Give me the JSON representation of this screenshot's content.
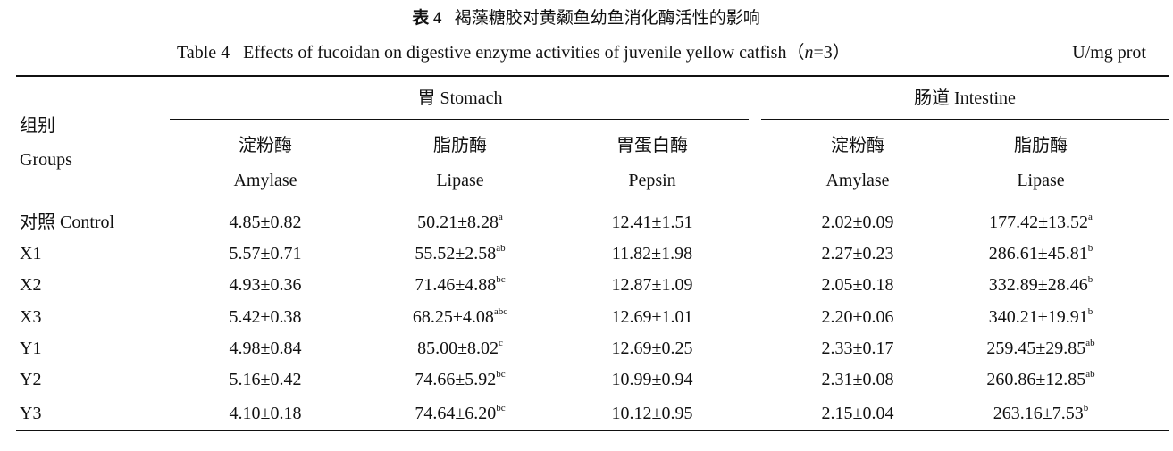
{
  "title": {
    "label": "表 4",
    "text": "褐藻糖胶对黄颡鱼幼鱼消化酶活性的影响"
  },
  "caption": {
    "label": "Table 4",
    "text": "Effects of fucoidan on digestive enzyme activities of juvenile yellow catfish",
    "sample_open": "（",
    "sample_var": "n",
    "sample_rest": "=3）",
    "unit": "U/mg prot"
  },
  "table": {
    "group_header": [
      "组别",
      "Groups"
    ],
    "sections": [
      {
        "name": "胃 Stomach",
        "columns": [
          [
            "淀粉酶",
            "Amylase"
          ],
          [
            "脂肪酶",
            "Lipase"
          ],
          [
            "胃蛋白酶",
            "Pepsin"
          ]
        ]
      },
      {
        "name": "肠道 Intestine",
        "columns": [
          [
            "淀粉酶",
            "Amylase"
          ],
          [
            "脂肪酶",
            "Lipase"
          ]
        ]
      }
    ],
    "rows": [
      {
        "group": "对照 Control",
        "cells": [
          {
            "text": "4.85±0.82"
          },
          {
            "text": "50.21±8.28",
            "sup": "a"
          },
          {
            "text": "12.41±1.51"
          },
          {
            "text": "2.02±0.09"
          },
          {
            "text": "177.42±13.52",
            "sup": "a"
          }
        ]
      },
      {
        "group": "X1",
        "cells": [
          {
            "text": "5.57±0.71"
          },
          {
            "text": "55.52±2.58",
            "sup": "ab"
          },
          {
            "text": "11.82±1.98"
          },
          {
            "text": "2.27±0.23"
          },
          {
            "text": "286.61±45.81",
            "sup": "b"
          }
        ]
      },
      {
        "group": "X2",
        "cells": [
          {
            "text": "4.93±0.36"
          },
          {
            "text": "71.46±4.88",
            "sup": "bc"
          },
          {
            "text": "12.87±1.09"
          },
          {
            "text": "2.05±0.18"
          },
          {
            "text": "332.89±28.46",
            "sup": "b"
          }
        ]
      },
      {
        "group": "X3",
        "cells": [
          {
            "text": "5.42±0.38"
          },
          {
            "text": "68.25±4.08",
            "sup": "abc"
          },
          {
            "text": "12.69±1.01"
          },
          {
            "text": "2.20±0.06"
          },
          {
            "text": "340.21±19.91",
            "sup": "b"
          }
        ]
      },
      {
        "group": "Y1",
        "cells": [
          {
            "text": "4.98±0.84"
          },
          {
            "text": "85.00±8.02",
            "sup": "c"
          },
          {
            "text": "12.69±0.25"
          },
          {
            "text": "2.33±0.17"
          },
          {
            "text": "259.45±29.85",
            "sup": "ab"
          }
        ]
      },
      {
        "group": "Y2",
        "cells": [
          {
            "text": "5.16±0.42"
          },
          {
            "text": "74.66±5.92",
            "sup": "bc"
          },
          {
            "text": "10.99±0.94"
          },
          {
            "text": "2.31±0.08"
          },
          {
            "text": "260.86±12.85",
            "sup": "ab"
          }
        ]
      },
      {
        "group": "Y3",
        "cells": [
          {
            "text": "4.10±0.18"
          },
          {
            "text": "74.64±6.20",
            "sup": "bc"
          },
          {
            "text": "10.12±0.95"
          },
          {
            "text": "2.15±0.04"
          },
          {
            "text": "263.16±7.53",
            "sup": "b"
          }
        ]
      }
    ]
  }
}
